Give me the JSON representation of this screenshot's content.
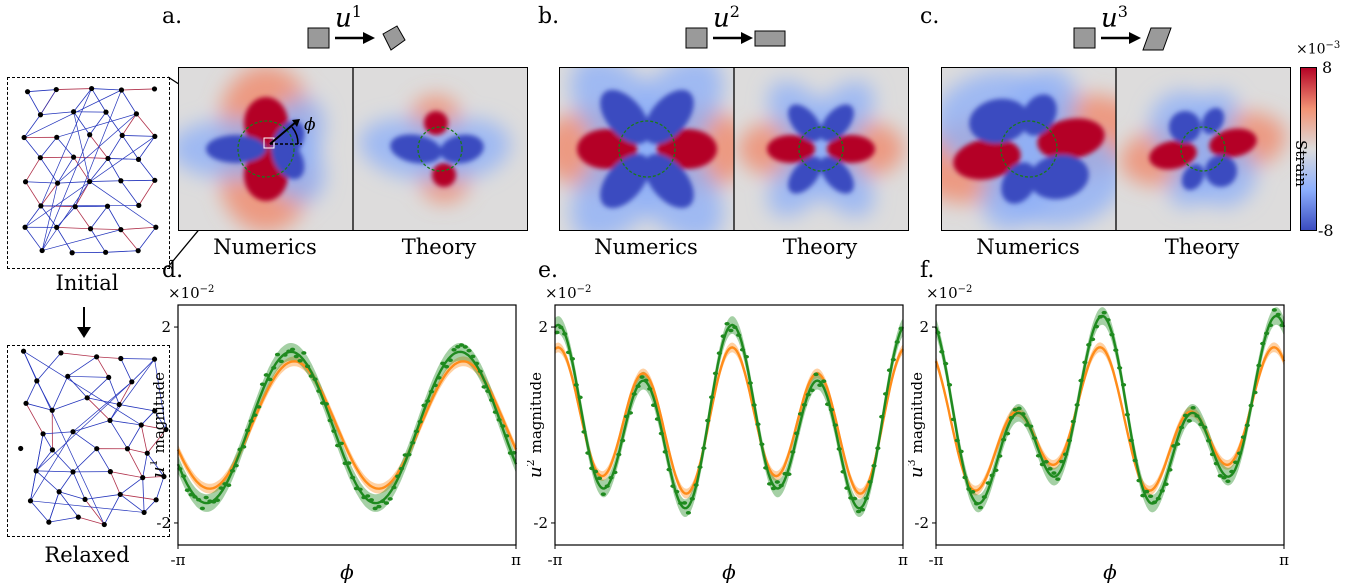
{
  "lattice": {
    "initial_label": "Initial",
    "relaxed_label": "Relaxed"
  },
  "top_panels": [
    {
      "letter": "a.",
      "mode_base": "u",
      "mode_sup": "1",
      "left_label": "Numerics",
      "right_label": "Theory",
      "annot": "ϕ"
    },
    {
      "letter": "b.",
      "mode_base": "u",
      "mode_sup": "2",
      "left_label": "Numerics",
      "right_label": "Theory"
    },
    {
      "letter": "c.",
      "mode_base": "u",
      "mode_sup": "3",
      "left_label": "Numerics",
      "right_label": "Theory"
    }
  ],
  "colorbar": {
    "exponent": "×10",
    "exponent_sup": "−3",
    "max_label": "8",
    "min_label": "-8",
    "title": "Strain",
    "colors": {
      "high": "#b40426",
      "mid": "#dddcdc",
      "low": "#3b4cc0"
    }
  },
  "colors": {
    "numerics": "#1f8a1f",
    "theory": "#ff8c1a"
  },
  "chart_data": [
    {
      "type": "line",
      "letter": "d.",
      "scale_label": "×10",
      "scale_sup": "−2",
      "ylabel_base": "u",
      "ylabel_sup": "1",
      "ylabel_rest": "magnitude",
      "xlabel": "ϕ",
      "xtick_labels": [
        "-π",
        "π"
      ],
      "ytick_labels": [
        "2",
        "-2"
      ],
      "xlim": [
        -3.1416,
        3.1416
      ],
      "ylim": [
        -2.45,
        2.45
      ],
      "theory_coef": {
        "a0": 0,
        "c2": -0.5,
        "s2": -1.2,
        "c4": 0,
        "s4": 0
      },
      "numerics_coef": {
        "a0": -0.05,
        "c2": -0.75,
        "s2": -1.35,
        "c4": 0,
        "s4": 0
      },
      "band_numerics": 0.18,
      "band_theory": 0.1
    },
    {
      "type": "line",
      "letter": "e.",
      "scale_label": "×10",
      "scale_sup": "−2",
      "ylabel_base": "u",
      "ylabel_sup": "2",
      "ylabel_rest": "magnitude",
      "xlabel": "ϕ",
      "xtick_labels": [
        "-π",
        "π"
      ],
      "ytick_labels": [
        "2",
        "-2"
      ],
      "xlim": [
        -3.1416,
        3.1416
      ],
      "ylim": [
        -2.45,
        2.45
      ],
      "theory_coef": {
        "a0": 0.05,
        "c2": 0.25,
        "s2": 0.2,
        "c4": 1.25,
        "s4": 0.2
      },
      "numerics_coef": {
        "a0": 0,
        "c2": 0.55,
        "s2": 0.25,
        "c4": 1.45,
        "s4": 0.25
      },
      "band_numerics": 0.18,
      "band_theory": 0.1
    },
    {
      "type": "line",
      "letter": "f.",
      "scale_label": "×10",
      "scale_sup": "−2",
      "ylabel_base": "u",
      "ylabel_sup": "3",
      "ylabel_rest": "magnitude",
      "xlabel": "ϕ",
      "xtick_labels": [
        "-π",
        "π"
      ],
      "ytick_labels": [
        "2",
        "-2"
      ],
      "xlim": [
        -3.1416,
        3.1416
      ],
      "ylim": [
        -2.45,
        2.45
      ],
      "theory_coef": {
        "a0": -0.05,
        "c2": 0.55,
        "s2": -0.45,
        "c4": 0.8,
        "s4": -0.55
      },
      "numerics_coef": {
        "a0": 0,
        "c2": 0.9,
        "s2": -0.5,
        "c4": 1.1,
        "s4": -0.55
      },
      "band_numerics": 0.18,
      "band_theory": 0.1
    }
  ]
}
